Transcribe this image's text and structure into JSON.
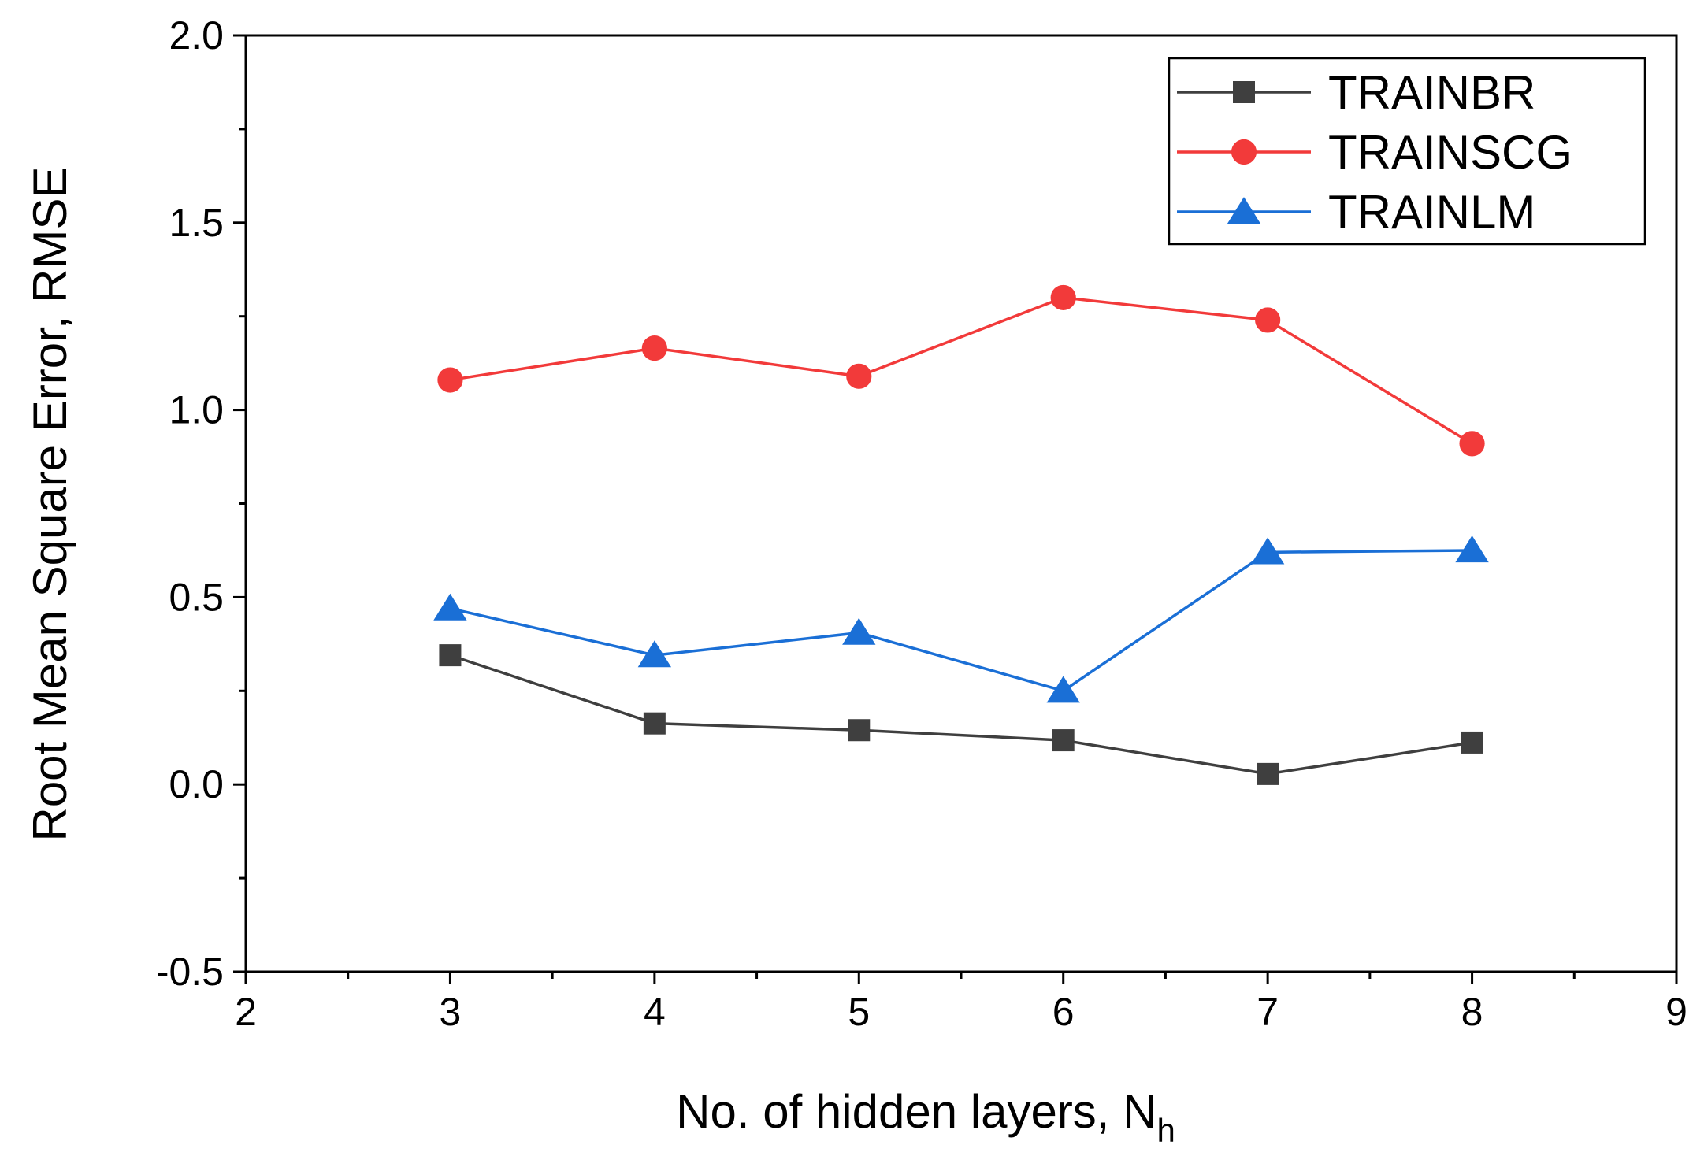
{
  "chart_data": {
    "type": "line",
    "xlabel": "No. of hidden layers, N",
    "xlabel_sub": "h",
    "ylabel": "Root Mean Square Error, RMSE",
    "xlim": [
      2,
      9
    ],
    "ylim": [
      -0.5,
      2.0
    ],
    "x_ticks": [
      2,
      3,
      4,
      5,
      6,
      7,
      8,
      9
    ],
    "x_tick_labels": [
      "2",
      "3",
      "4",
      "5",
      "6",
      "7",
      "8",
      "9"
    ],
    "y_ticks": [
      -0.5,
      0.0,
      0.5,
      1.0,
      1.5,
      2.0
    ],
    "y_tick_labels": [
      "-0.5",
      "0.0",
      "0.5",
      "1.0",
      "1.5",
      "2.0"
    ],
    "x_minor_ticks": [
      2.5,
      3.5,
      4.5,
      5.5,
      6.5,
      7.5,
      8.5
    ],
    "y_minor_ticks": [
      -0.25,
      0.25,
      0.75,
      1.25,
      1.75
    ],
    "grid": false,
    "legend_position": "top-right",
    "x": [
      3,
      4,
      5,
      6,
      7,
      8
    ],
    "series": [
      {
        "name": "TRAINBR",
        "marker": "square",
        "color": "#3f3f3f",
        "values": [
          0.345,
          0.163,
          0.145,
          0.118,
          0.028,
          0.112
        ]
      },
      {
        "name": "TRAINSCG",
        "marker": "circle",
        "color": "#f23a3a",
        "values": [
          1.08,
          1.165,
          1.09,
          1.3,
          1.24,
          0.91
        ]
      },
      {
        "name": "TRAINLM",
        "marker": "triangle",
        "color": "#1a6fd6",
        "values": [
          0.47,
          0.345,
          0.405,
          0.25,
          0.62,
          0.625
        ]
      }
    ]
  }
}
